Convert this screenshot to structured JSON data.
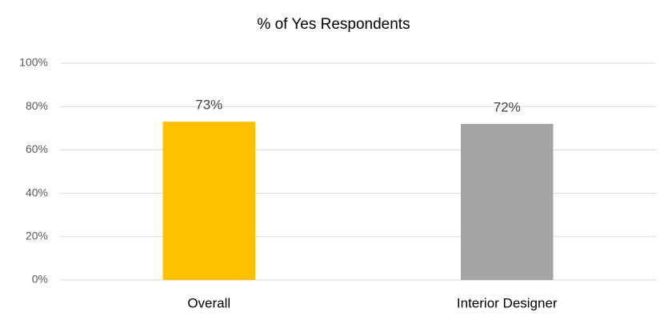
{
  "chart_data": {
    "type": "bar",
    "title": "% of Yes Respondents",
    "categories": [
      "Overall",
      "Interior Designer"
    ],
    "values": [
      73,
      72
    ],
    "value_labels": [
      "73%",
      "72%"
    ],
    "colors": [
      "#ffc000",
      "#a5a5a5"
    ],
    "ylim": [
      0,
      100
    ],
    "yticks": [
      {
        "value": 0,
        "label": "0%"
      },
      {
        "value": 20,
        "label": "20%"
      },
      {
        "value": 40,
        "label": "40%"
      },
      {
        "value": 60,
        "label": "60%"
      },
      {
        "value": 80,
        "label": "80%"
      },
      {
        "value": 100,
        "label": "100%"
      }
    ],
    "grid": true
  }
}
